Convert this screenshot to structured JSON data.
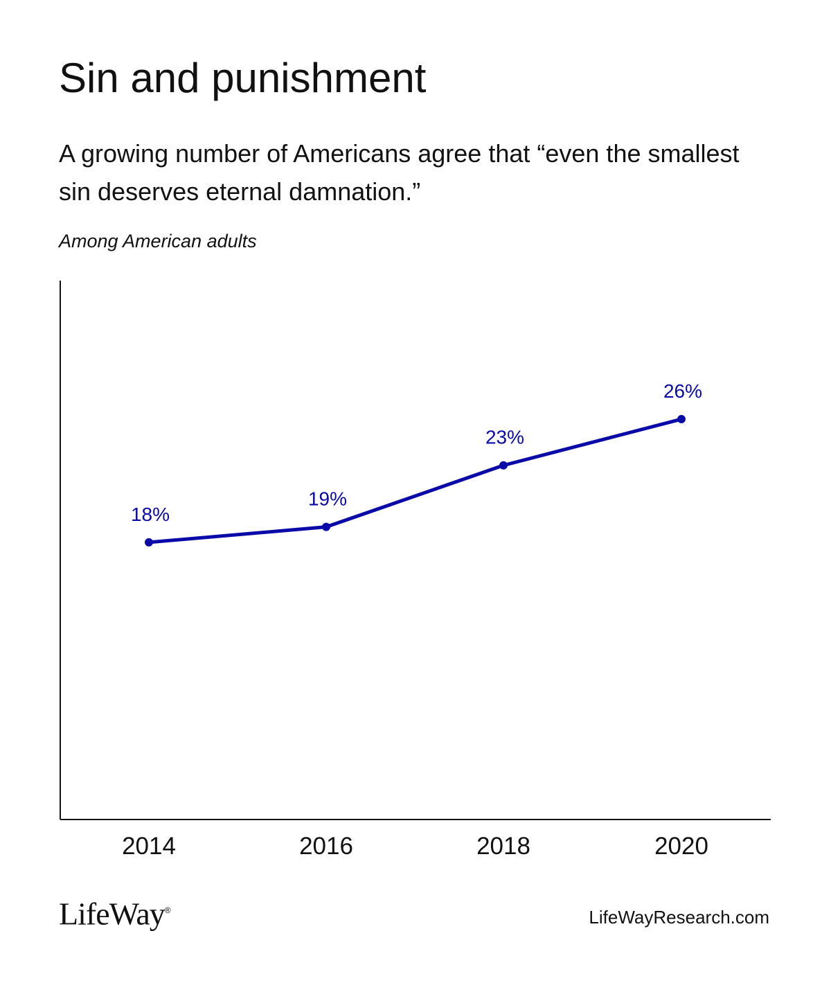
{
  "header": {
    "title": "Sin and punishment",
    "subtitle": "A growing number of Americans agree that “even the smallest sin deserves eternal damnation.”",
    "note": "Among American adults"
  },
  "chart_data": {
    "type": "line",
    "categories": [
      "2014",
      "2016",
      "2018",
      "2020"
    ],
    "series": [
      {
        "values": [
          18,
          19,
          23,
          26
        ],
        "labels": [
          "18%",
          "19%",
          "23%",
          "26%"
        ],
        "color": "#0a0aa8"
      }
    ],
    "ylim": [
      0,
      35
    ],
    "grid": false,
    "y_axis_ticks": false
  },
  "footer": {
    "logo": "LifeWay",
    "logo_mark": "®",
    "website": "LifeWayResearch.com"
  },
  "colors": {
    "text": "#111111",
    "axis": "#111111",
    "series": "#0a0aa8"
  }
}
